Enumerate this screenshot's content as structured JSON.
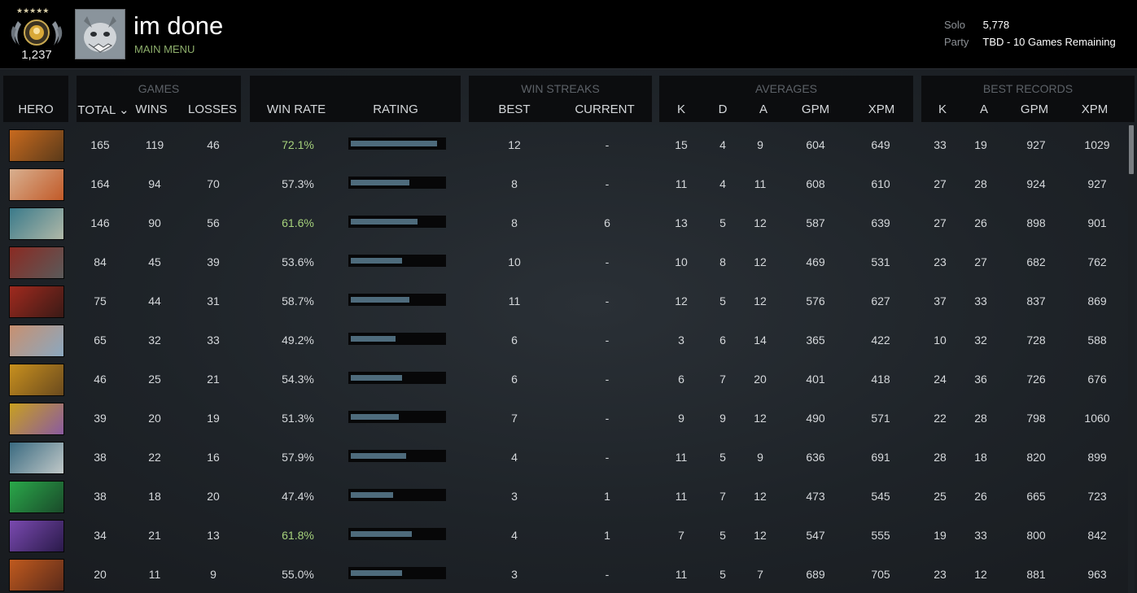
{
  "profile": {
    "medal_rank": "1,237",
    "medal_stars": "★★★★★",
    "name": "im done",
    "status": "MAIN MENU",
    "mmr_solo_label": "Solo",
    "mmr_solo_value": "5,778",
    "mmr_party_label": "Party",
    "mmr_party_value": "TBD - 10 Games Remaining"
  },
  "table": {
    "groups": {
      "games": "GAMES",
      "win_streaks": "WIN STREAKS",
      "averages": "AVERAGES",
      "best_records": "BEST RECORDS"
    },
    "columns": {
      "hero": "HERO",
      "total": "TOTAL ⌄",
      "wins": "WINS",
      "losses": "LOSSES",
      "win_rate": "WIN RATE",
      "rating": "RATING",
      "best": "BEST",
      "current": "CURRENT",
      "avg_k": "K",
      "avg_d": "D",
      "avg_a": "A",
      "avg_gpm": "GPM",
      "avg_xpm": "XPM",
      "best_k": "K",
      "best_a": "A",
      "best_gpm": "GPM",
      "best_xpm": "XPM"
    },
    "rows": [
      {
        "total": "165",
        "wins": "119",
        "losses": "46",
        "win_rate": "72.1%",
        "win_rate_highlight": true,
        "rating": 0.93,
        "best": "12",
        "current": "-",
        "k": "15",
        "d": "4",
        "a": "9",
        "gpm": "604",
        "xpm": "649",
        "bk": "33",
        "ba": "19",
        "bgpm": "927",
        "bxpm": "1029",
        "hero_colors": [
          "#c86a1e",
          "#5a3a1a"
        ]
      },
      {
        "total": "164",
        "wins": "94",
        "losses": "70",
        "win_rate": "57.3%",
        "win_rate_highlight": false,
        "rating": 0.63,
        "best": "8",
        "current": "-",
        "k": "11",
        "d": "4",
        "a": "11",
        "gpm": "608",
        "xpm": "610",
        "bk": "27",
        "ba": "28",
        "bgpm": "924",
        "bxpm": "927",
        "hero_colors": [
          "#d8b090",
          "#c25a28"
        ]
      },
      {
        "total": "146",
        "wins": "90",
        "losses": "56",
        "win_rate": "61.6%",
        "win_rate_highlight": true,
        "rating": 0.72,
        "best": "8",
        "current": "6",
        "k": "13",
        "d": "5",
        "a": "12",
        "gpm": "587",
        "xpm": "639",
        "bk": "27",
        "ba": "26",
        "bgpm": "898",
        "bxpm": "901",
        "hero_colors": [
          "#3a7a8a",
          "#b0b8a8"
        ]
      },
      {
        "total": "84",
        "wins": "45",
        "losses": "39",
        "win_rate": "53.6%",
        "win_rate_highlight": false,
        "rating": 0.55,
        "best": "10",
        "current": "-",
        "k": "10",
        "d": "8",
        "a": "12",
        "gpm": "469",
        "xpm": "531",
        "bk": "23",
        "ba": "27",
        "bgpm": "682",
        "bxpm": "762",
        "hero_colors": [
          "#8a2a22",
          "#5a5a5a"
        ]
      },
      {
        "total": "75",
        "wins": "44",
        "losses": "31",
        "win_rate": "58.7%",
        "win_rate_highlight": false,
        "rating": 0.63,
        "best": "11",
        "current": "-",
        "k": "12",
        "d": "5",
        "a": "12",
        "gpm": "576",
        "xpm": "627",
        "bk": "37",
        "ba": "33",
        "bgpm": "837",
        "bxpm": "869",
        "hero_colors": [
          "#a02a1e",
          "#3a1a16"
        ]
      },
      {
        "total": "65",
        "wins": "32",
        "losses": "33",
        "win_rate": "49.2%",
        "win_rate_highlight": false,
        "rating": 0.48,
        "best": "6",
        "current": "-",
        "k": "3",
        "d": "6",
        "a": "14",
        "gpm": "365",
        "xpm": "422",
        "bk": "10",
        "ba": "32",
        "bgpm": "728",
        "bxpm": "588",
        "hero_colors": [
          "#c89070",
          "#8aa8c0"
        ]
      },
      {
        "total": "46",
        "wins": "25",
        "losses": "21",
        "win_rate": "54.3%",
        "win_rate_highlight": false,
        "rating": 0.55,
        "best": "6",
        "current": "-",
        "k": "6",
        "d": "7",
        "a": "20",
        "gpm": "401",
        "xpm": "418",
        "bk": "24",
        "ba": "36",
        "bgpm": "726",
        "bxpm": "676",
        "hero_colors": [
          "#c8901e",
          "#6a4a1e"
        ]
      },
      {
        "total": "39",
        "wins": "20",
        "losses": "19",
        "win_rate": "51.3%",
        "win_rate_highlight": false,
        "rating": 0.52,
        "best": "7",
        "current": "-",
        "k": "9",
        "d": "9",
        "a": "12",
        "gpm": "490",
        "xpm": "571",
        "bk": "22",
        "ba": "28",
        "bgpm": "798",
        "bxpm": "1060",
        "hero_colors": [
          "#c8a020",
          "#8a5aa0"
        ]
      },
      {
        "total": "38",
        "wins": "22",
        "losses": "16",
        "win_rate": "57.9%",
        "win_rate_highlight": false,
        "rating": 0.6,
        "best": "4",
        "current": "-",
        "k": "11",
        "d": "5",
        "a": "9",
        "gpm": "636",
        "xpm": "691",
        "bk": "28",
        "ba": "18",
        "bgpm": "820",
        "bxpm": "899",
        "hero_colors": [
          "#3a6a80",
          "#c0c8c8"
        ]
      },
      {
        "total": "38",
        "wins": "18",
        "losses": "20",
        "win_rate": "47.4%",
        "win_rate_highlight": false,
        "rating": 0.46,
        "best": "3",
        "current": "1",
        "k": "11",
        "d": "7",
        "a": "12",
        "gpm": "473",
        "xpm": "545",
        "bk": "25",
        "ba": "26",
        "bgpm": "665",
        "bxpm": "723",
        "hero_colors": [
          "#2aa84a",
          "#1a4a2a"
        ]
      },
      {
        "total": "34",
        "wins": "21",
        "losses": "13",
        "win_rate": "61.8%",
        "win_rate_highlight": true,
        "rating": 0.66,
        "best": "4",
        "current": "1",
        "k": "7",
        "d": "5",
        "a": "12",
        "gpm": "547",
        "xpm": "555",
        "bk": "19",
        "ba": "33",
        "bgpm": "800",
        "bxpm": "842",
        "hero_colors": [
          "#7a4ab0",
          "#2a1a4a"
        ]
      },
      {
        "total": "20",
        "wins": "11",
        "losses": "9",
        "win_rate": "55.0%",
        "win_rate_highlight": false,
        "rating": 0.55,
        "best": "3",
        "current": "-",
        "k": "11",
        "d": "5",
        "a": "7",
        "gpm": "689",
        "xpm": "705",
        "bk": "23",
        "ba": "12",
        "bgpm": "881",
        "bxpm": "963",
        "hero_colors": [
          "#c05a1e",
          "#5a2a1a"
        ]
      }
    ]
  }
}
